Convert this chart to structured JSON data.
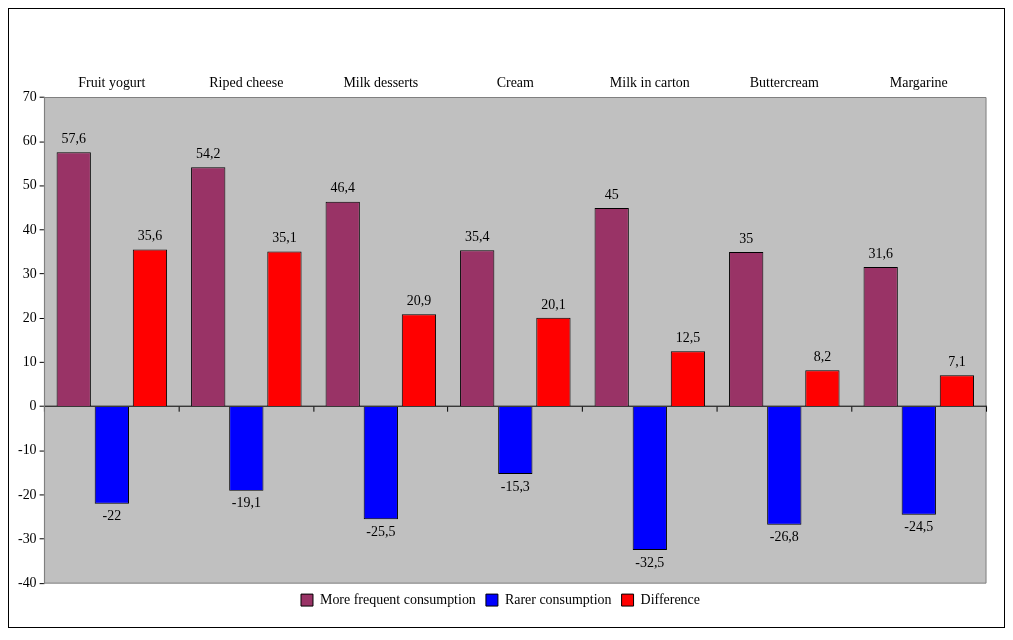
{
  "chart_data": {
    "type": "bar",
    "categories": [
      "Fruit yogurt",
      "Riped cheese",
      "Milk desserts",
      "Cream",
      "Milk in carton",
      "Buttercream",
      "Margarine"
    ],
    "series": [
      {
        "name": "More frequent consumption",
        "color": "#993366",
        "values": [
          57.6,
          54.2,
          46.4,
          35.4,
          45,
          35,
          31.6
        ],
        "value_labels": [
          "57,6",
          "54,2",
          "46,4",
          "35,4",
          "45",
          "35",
          "31,6"
        ]
      },
      {
        "name": "Rarer consumption",
        "color": "#0000ff",
        "values": [
          -22,
          -19.1,
          -25.5,
          -15.3,
          -32.5,
          -26.8,
          -24.5
        ],
        "value_labels": [
          "-22",
          "-19,1",
          "-25,5",
          "-15,3",
          "-32,5",
          "-26,8",
          "-24,5"
        ]
      },
      {
        "name": "Difference",
        "color": "#ff0000",
        "values": [
          35.6,
          35.1,
          20.9,
          20.1,
          12.5,
          8.2,
          7.1
        ],
        "value_labels": [
          "35,6",
          "35,1",
          "20,9",
          "20,1",
          "12,5",
          "8,2",
          "7,1"
        ]
      }
    ],
    "ylim": [
      -40,
      70
    ],
    "yticks": [
      -40,
      -30,
      -20,
      -10,
      0,
      10,
      20,
      30,
      40,
      50,
      60,
      70
    ],
    "legend": "bottom"
  }
}
